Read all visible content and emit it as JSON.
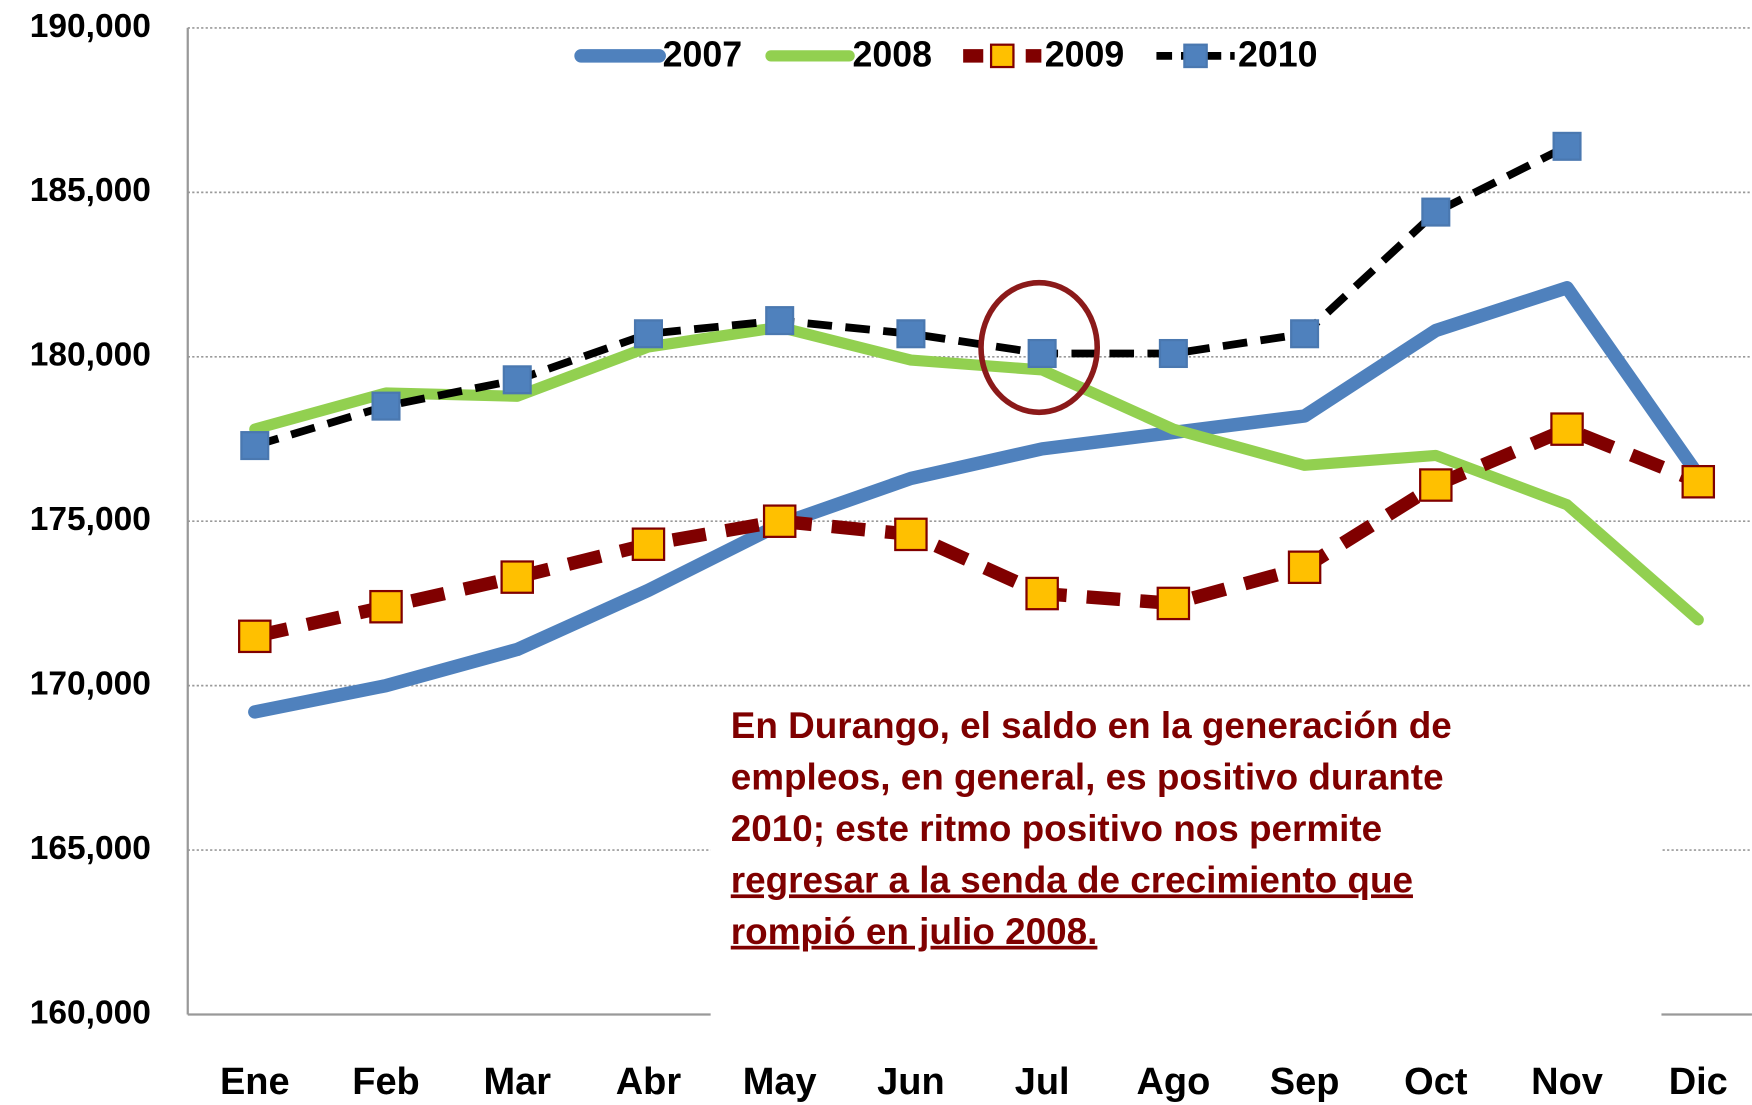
{
  "chart_data": {
    "type": "line",
    "categories": [
      "Ene",
      "Feb",
      "Mar",
      "Abr",
      "May",
      "Jun",
      "Jul",
      "Ago",
      "Sep",
      "Oct",
      "Nov",
      "Dic"
    ],
    "series": [
      {
        "name": "2007",
        "color": "#4f81bd",
        "dashed": false,
        "values": [
          169200,
          170000,
          171100,
          172900,
          174900,
          176300,
          177200,
          177700,
          178200,
          180800,
          182100,
          176400
        ]
      },
      {
        "name": "2008",
        "color": "#92d050",
        "dashed": false,
        "values": [
          177800,
          178900,
          178800,
          180300,
          180900,
          179900,
          179600,
          177800,
          176700,
          177000,
          175500,
          172000
        ]
      },
      {
        "name": "2009",
        "color": "#800000",
        "dashed": true,
        "marker": "square",
        "marker_color": "#ffc000",
        "values": [
          171500,
          172400,
          173300,
          174300,
          175000,
          174600,
          172800,
          172500,
          173600,
          176100,
          177800,
          176200
        ]
      },
      {
        "name": "2010",
        "color": "#000000",
        "dashed": true,
        "marker": "square",
        "marker_color": "#4f81bd",
        "values": [
          177300,
          178500,
          179300,
          180700,
          181100,
          180700,
          180100,
          180100,
          180700,
          184400,
          186400,
          null
        ]
      }
    ],
    "ylim": [
      160000,
      190000
    ],
    "yticks": [
      {
        "value": 160000,
        "label": "160,000"
      },
      {
        "value": 165000,
        "label": "165,000"
      },
      {
        "value": 170000,
        "label": "170,000"
      },
      {
        "value": 175000,
        "label": "175,000"
      },
      {
        "value": 180000,
        "label": "180,000"
      },
      {
        "value": 185000,
        "label": "185,000"
      },
      {
        "value": 190000,
        "label": "190,000"
      }
    ],
    "grid": true,
    "legend": "top",
    "annotation": [
      "En Durango, el saldo en la generación de",
      "empleos, en general, es positivo durante",
      "2010; este ritmo positivo nos permite"
    ],
    "annotation_underlined": [
      "regresar a la senda de crecimiento que",
      "rompió en julio 2008."
    ]
  }
}
